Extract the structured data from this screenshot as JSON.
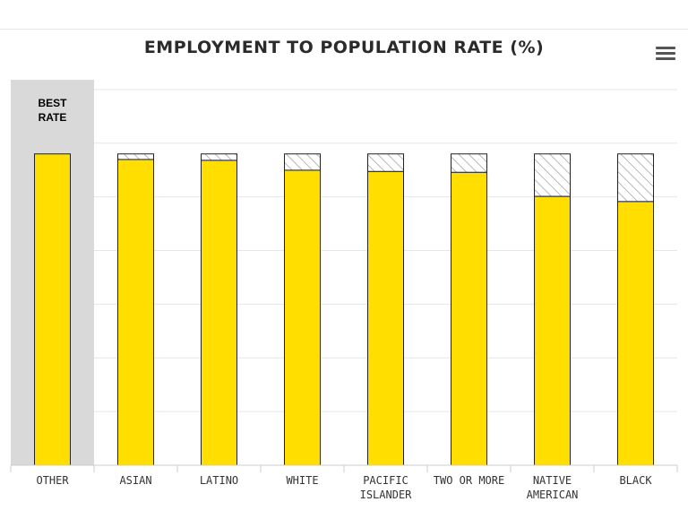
{
  "title": "EMPLOYMENT TO POPULATION RATE (%)",
  "menu_icon": "hamburger-menu-icon",
  "highlight": {
    "category": "OTHER",
    "lines": [
      "BEST",
      "RATE"
    ],
    "color": "#d9d9d9"
  },
  "colors": {
    "bar": "#ffde00",
    "gap_stroke": "#9a9a9a",
    "outline": "#222222",
    "grid": "#e6e6e6"
  },
  "chart_data": {
    "type": "bar",
    "categories": [
      [
        "OTHER"
      ],
      [
        "ASIAN"
      ],
      [
        "LATINO"
      ],
      [
        "WHITE"
      ],
      [
        "PACIFIC",
        "ISLANDER"
      ],
      [
        "TWO OR MORE"
      ],
      [
        "NATIVE",
        "AMERICAN"
      ],
      [
        "BLACK"
      ]
    ],
    "values": [
      72.5,
      71.2,
      71.0,
      68.7,
      68.4,
      68.2,
      62.6,
      61.4
    ],
    "best_value": 72.5,
    "ylim": [
      0,
      100
    ],
    "grid": true,
    "legend": "none"
  }
}
